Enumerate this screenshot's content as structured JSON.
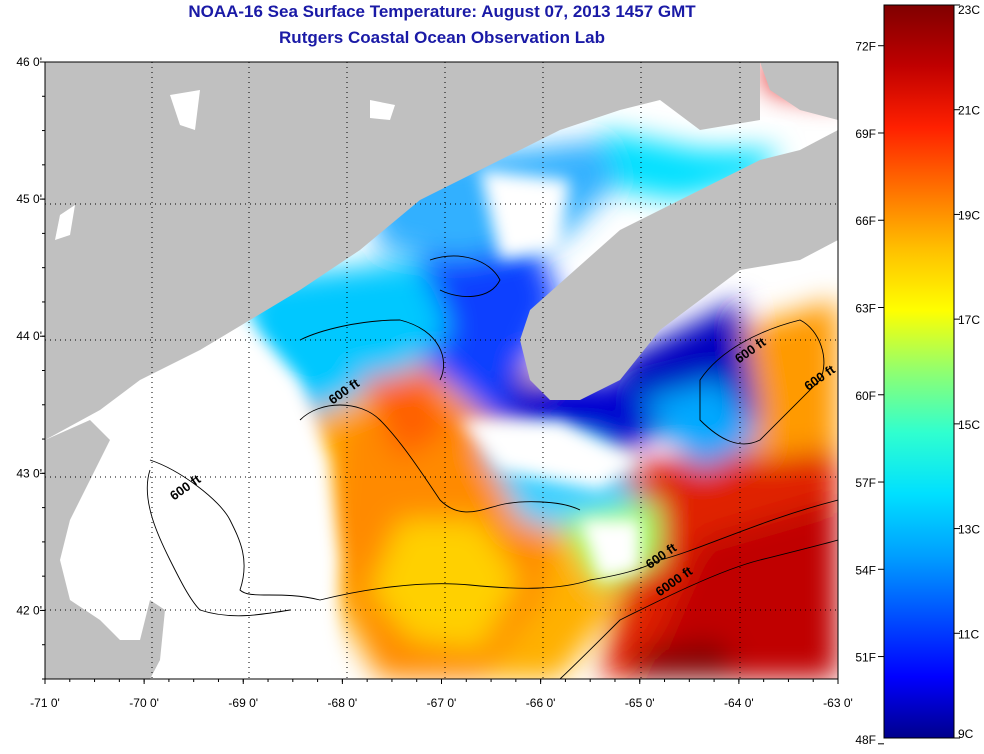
{
  "header": {
    "title": "NOAA-16 Sea Surface Temperature:  August 07, 2013 1457 GMT",
    "subtitle": "Rutgers Coastal Ocean Observation Lab"
  },
  "map": {
    "lon_ticks": [
      "-71 0'",
      "-70 0'",
      "-69 0'",
      "-68 0'",
      "-67 0'",
      "-66 0'",
      "-65 0'",
      "-64 0'",
      "-63 0'"
    ],
    "lat_ticks": [
      "46 0'",
      "45 0'",
      "44 0'",
      "43 0'",
      "42 0'"
    ],
    "lon_range": [
      -71,
      -63
    ],
    "lat_range": [
      41.5,
      46
    ],
    "land_color": "#c0c0c0",
    "cloud_color": "#ffffff",
    "contour_labels": [
      {
        "text": "600 ft",
        "lon": -68.1,
        "lat": 43.5
      },
      {
        "text": "600 ft",
        "lon": -69.7,
        "lat": 42.8
      },
      {
        "text": "600 ft",
        "lon": -64.0,
        "lat": 43.8
      },
      {
        "text": "600 ft",
        "lon": -63.3,
        "lat": 43.6
      },
      {
        "text": "600 ft",
        "lon": -64.9,
        "lat": 42.3
      },
      {
        "text": "6000 ft",
        "lon": -64.8,
        "lat": 42.1
      }
    ]
  },
  "colorbar": {
    "celsius_labels": [
      "23C",
      "21C",
      "19C",
      "17C",
      "15C",
      "13C",
      "11C",
      "9C"
    ],
    "fahrenheit_labels": [
      "72F",
      "69F",
      "66F",
      "63F",
      "60F",
      "57F",
      "54F",
      "51F",
      "48F"
    ],
    "celsius_range": [
      9,
      23
    ],
    "colors": [
      "#00008c",
      "#0000ff",
      "#0050ff",
      "#00a0ff",
      "#00e0ff",
      "#30ffcf",
      "#90ff70",
      "#ffff00",
      "#ffc000",
      "#ff7000",
      "#ff2000",
      "#c00000",
      "#800000"
    ]
  }
}
